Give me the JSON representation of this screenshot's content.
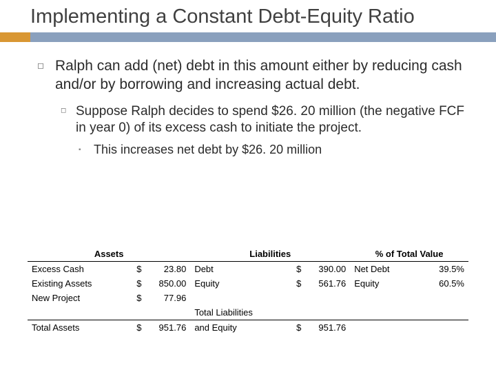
{
  "title": "Implementing a Constant Debt-Equity Ratio",
  "accent_color": "#d99733",
  "underline_color": "#8aa0bd",
  "bullets": {
    "main": "Ralph can add (net) debt in this amount either by reducing cash and/or by borrowing and increasing actual debt.",
    "sub": "Suppose Ralph decides to spend $26. 20 million (the negative FCF in year 0) of its excess cash to initiate the project.",
    "subsub": "This increases net debt by $26. 20 million"
  },
  "table": {
    "headers": {
      "assets": "Assets",
      "liabilities": "Liabilities",
      "pct": "% of Total Value"
    },
    "rows": {
      "excess_cash": {
        "a_label": "Excess Cash",
        "a_val": "23.80",
        "l_label": "Debt",
        "l_val": "390.00",
        "p_label": "Net Debt",
        "p_val": "39.5%"
      },
      "existing_assets": {
        "a_label": "Existing Assets",
        "a_val": "850.00",
        "l_label": "Equity",
        "l_val": "561.76",
        "p_label": "Equity",
        "p_val": "60.5%"
      },
      "new_project": {
        "a_label": "New Project",
        "a_val": "77.96",
        "l_label": "",
        "l_val": "",
        "p_label": "",
        "p_val": ""
      },
      "total_liab": {
        "a_label": "",
        "a_val": "",
        "l_label": "Total Liabilities",
        "l_val": "",
        "p_label": "",
        "p_val": ""
      },
      "totals": {
        "a_label": "Total Assets",
        "a_val": "951.76",
        "l_label": "and Equity",
        "l_val": "951.76",
        "p_label": "",
        "p_val": ""
      }
    }
  }
}
